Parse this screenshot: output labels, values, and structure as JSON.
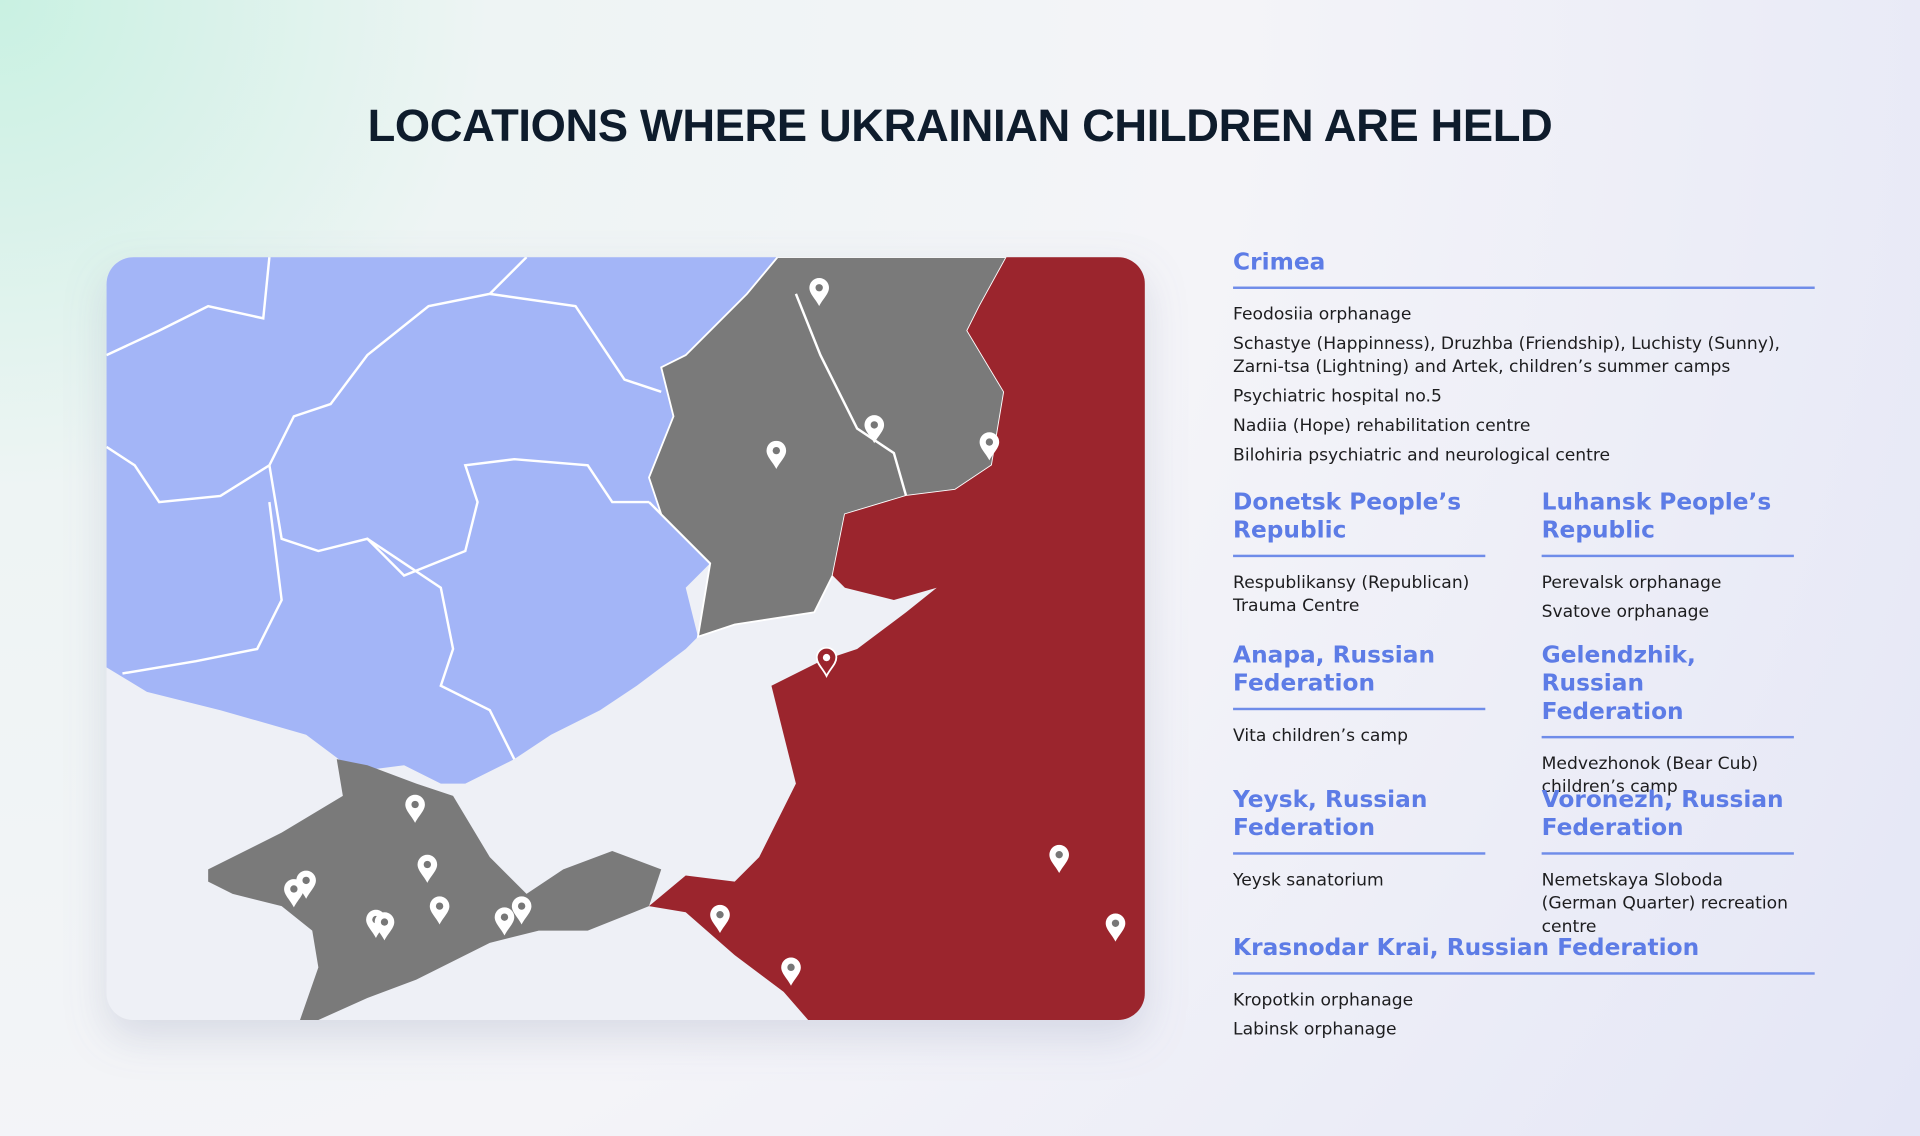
{
  "title": "LOCATIONS WHERE UKRAINIAN CHILDREN ARE HELD",
  "sections": [
    {
      "heading": "Crimea",
      "items": [
        "Feodosiia orphanage",
        "Schastye (Happinness), Druzhba (Friendship), Luchisty (Sunny), Zarni-tsa (Lightning) and Artek, children’s summer camps",
        "Psychiatric hospital no.5",
        "Nadiia (Hope) rehabilitation centre",
        "Bilohiria psychiatric and neurological centre"
      ]
    },
    {
      "heading": "Donetsk People’s Republic",
      "items": [
        "Respublikansy (Republican) Trauma Centre"
      ]
    },
    {
      "heading": "Luhansk People’s Republic",
      "items": [
        "Perevalsk orphanage",
        "Svatove orphanage"
      ]
    },
    {
      "heading": "Anapa, Russian Federation",
      "items": [
        "Vita children’s camp"
      ]
    },
    {
      "heading": "Gelendzhik, Russian Federation",
      "items": [
        "Medvezhonok (Bear Cub) children’s camp"
      ]
    },
    {
      "heading": "Yeysk, Russian Federation",
      "items": [
        "Yeysk sanatorium"
      ]
    },
    {
      "heading": "Voronezh, Russian Federation",
      "items": [
        "Nemetskaya Sloboda (German Quarter) recreation centre"
      ]
    },
    {
      "heading": "Krasnodar Krai, Russian Federation",
      "items": [
        "Kropotkin orphanage",
        "Labinsk orphanage"
      ]
    }
  ]
}
